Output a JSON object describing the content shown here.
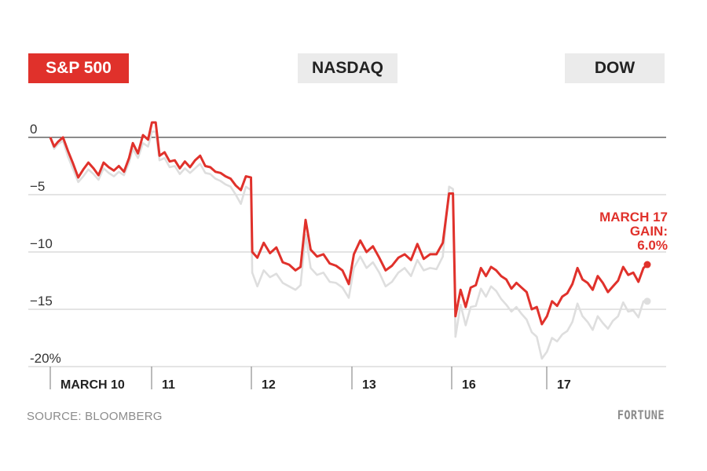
{
  "tabs": [
    {
      "label": "S&P 500",
      "active": true
    },
    {
      "label": "NASDAQ",
      "active": false
    },
    {
      "label": "DOW",
      "active": false
    }
  ],
  "source": "SOURCE: BLOOMBERG",
  "brand": "FORTUNE",
  "colors": {
    "active_series": "#e0312b",
    "inactive_series": "#dedede",
    "active_tab": "#e0312b",
    "inactive_tab": "#ebebeb"
  },
  "chart_data": {
    "type": "line",
    "ylim": [
      -20.5,
      1.5
    ],
    "y_ticks": [
      0,
      -5,
      -10,
      -15,
      -20
    ],
    "y_tick_labels": [
      "0",
      "−5",
      "−10",
      "−15",
      "-20%"
    ],
    "x_day_labels": [
      "MARCH 10",
      "11",
      "12",
      "13",
      "16",
      "17"
    ],
    "annotation": [
      "MARCH 17",
      "GAIN:",
      "6.0%"
    ],
    "grid": true,
    "series": [
      {
        "active": true,
        "points": [
          [
            0,
            0
          ],
          [
            0.3,
            -0.8
          ],
          [
            0.6,
            -0.4
          ],
          [
            1,
            0
          ],
          [
            1.4,
            -1.2
          ],
          [
            1.8,
            -2.3
          ],
          [
            2.2,
            -3.5
          ],
          [
            2.6,
            -2.8
          ],
          [
            3,
            -2.2
          ],
          [
            3.4,
            -2.7
          ],
          [
            3.8,
            -3.3
          ],
          [
            4.2,
            -2.2
          ],
          [
            4.6,
            -2.6
          ],
          [
            5,
            -2.9
          ],
          [
            5.4,
            -2.5
          ],
          [
            5.8,
            -3.0
          ],
          [
            6.2,
            -1.8
          ],
          [
            6.5,
            -0.5
          ],
          [
            6.9,
            -1.4
          ],
          [
            7.3,
            0.2
          ],
          [
            7.7,
            -0.2
          ],
          [
            8,
            1.3
          ],
          [
            8.3,
            1.3
          ],
          [
            8.6,
            -1.6
          ],
          [
            9,
            -1.3
          ],
          [
            9.4,
            -2.1
          ],
          [
            9.8,
            -2.0
          ],
          [
            10.2,
            -2.7
          ],
          [
            10.6,
            -2.1
          ],
          [
            11,
            -2.6
          ],
          [
            11.4,
            -2.0
          ],
          [
            11.8,
            -1.6
          ],
          [
            12.2,
            -2.5
          ],
          [
            12.6,
            -2.6
          ],
          [
            13,
            -3.0
          ],
          [
            13.4,
            -3.1
          ],
          [
            13.8,
            -3.4
          ],
          [
            14.2,
            -3.6
          ],
          [
            14.6,
            -4.2
          ],
          [
            15,
            -4.6
          ],
          [
            15.4,
            -3.4
          ],
          [
            15.8,
            -3.5
          ],
          [
            15.9,
            -10.0
          ],
          [
            16.3,
            -10.5
          ],
          [
            16.8,
            -9.2
          ],
          [
            17.3,
            -10.1
          ],
          [
            17.8,
            -9.6
          ],
          [
            18.3,
            -10.9
          ],
          [
            18.8,
            -11.1
          ],
          [
            19.3,
            -11.6
          ],
          [
            19.7,
            -11.3
          ],
          [
            20.1,
            -7.2
          ],
          [
            20.5,
            -9.8
          ],
          [
            21,
            -10.4
          ],
          [
            21.5,
            -10.2
          ],
          [
            22,
            -11.0
          ],
          [
            22.5,
            -11.2
          ],
          [
            23,
            -11.6
          ],
          [
            23.5,
            -12.8
          ],
          [
            23.9,
            -10.2
          ],
          [
            24.4,
            -9.0
          ],
          [
            24.9,
            -10.0
          ],
          [
            25.4,
            -9.5
          ],
          [
            25.9,
            -10.5
          ],
          [
            26.4,
            -11.6
          ],
          [
            26.9,
            -11.2
          ],
          [
            27.4,
            -10.5
          ],
          [
            27.9,
            -10.2
          ],
          [
            28.4,
            -10.7
          ],
          [
            28.9,
            -9.3
          ],
          [
            29.4,
            -10.6
          ],
          [
            29.9,
            -10.2
          ],
          [
            30.4,
            -10.2
          ],
          [
            30.9,
            -9.2
          ],
          [
            31.4,
            -4.9
          ],
          [
            31.7,
            -4.9
          ],
          [
            31.9,
            -15.6
          ],
          [
            32.3,
            -13.3
          ],
          [
            32.7,
            -14.8
          ],
          [
            33.1,
            -13.1
          ],
          [
            33.5,
            -12.9
          ],
          [
            33.9,
            -11.4
          ],
          [
            34.3,
            -12.1
          ],
          [
            34.7,
            -11.3
          ],
          [
            35.1,
            -11.6
          ],
          [
            35.5,
            -12.1
          ],
          [
            35.9,
            -12.4
          ],
          [
            36.3,
            -13.2
          ],
          [
            36.7,
            -12.7
          ],
          [
            37.1,
            -13.1
          ],
          [
            37.5,
            -13.5
          ],
          [
            37.9,
            -15.0
          ],
          [
            38.3,
            -14.8
          ],
          [
            38.7,
            -16.3
          ],
          [
            39.1,
            -15.6
          ],
          [
            39.5,
            -14.3
          ],
          [
            39.9,
            -14.7
          ],
          [
            40.3,
            -13.9
          ],
          [
            40.7,
            -13.6
          ],
          [
            41.1,
            -12.8
          ],
          [
            41.5,
            -11.4
          ],
          [
            41.9,
            -12.4
          ],
          [
            42.3,
            -12.7
          ],
          [
            42.7,
            -13.3
          ],
          [
            43.1,
            -12.1
          ],
          [
            43.5,
            -12.7
          ],
          [
            43.9,
            -13.5
          ],
          [
            44.3,
            -13.0
          ],
          [
            44.7,
            -12.5
          ],
          [
            45.1,
            -11.3
          ],
          [
            45.5,
            -12.0
          ],
          [
            45.9,
            -11.8
          ],
          [
            46.3,
            -12.6
          ],
          [
            46.7,
            -11.4
          ],
          [
            47,
            -11.1
          ]
        ]
      },
      {
        "active": false,
        "points": [
          [
            0,
            0
          ],
          [
            0.3,
            -1.0
          ],
          [
            0.6,
            -0.6
          ],
          [
            1,
            -0.3
          ],
          [
            1.4,
            -1.7
          ],
          [
            1.8,
            -2.8
          ],
          [
            2.2,
            -3.9
          ],
          [
            2.6,
            -3.4
          ],
          [
            3,
            -2.8
          ],
          [
            3.4,
            -3.2
          ],
          [
            3.8,
            -3.7
          ],
          [
            4.2,
            -2.7
          ],
          [
            4.6,
            -3.1
          ],
          [
            5,
            -3.4
          ],
          [
            5.4,
            -3.0
          ],
          [
            5.8,
            -3.3
          ],
          [
            6.2,
            -2.2
          ],
          [
            6.5,
            -1.0
          ],
          [
            6.9,
            -1.8
          ],
          [
            7.3,
            -0.5
          ],
          [
            7.7,
            -0.8
          ],
          [
            8,
            0.5
          ],
          [
            8.3,
            0.5
          ],
          [
            8.6,
            -2.0
          ],
          [
            9,
            -1.8
          ],
          [
            9.4,
            -2.6
          ],
          [
            9.8,
            -2.5
          ],
          [
            10.2,
            -3.2
          ],
          [
            10.6,
            -2.7
          ],
          [
            11,
            -3.1
          ],
          [
            11.4,
            -2.7
          ],
          [
            11.8,
            -2.3
          ],
          [
            12.2,
            -3.1
          ],
          [
            12.6,
            -3.2
          ],
          [
            13,
            -3.6
          ],
          [
            13.4,
            -3.8
          ],
          [
            13.8,
            -4.1
          ],
          [
            14.2,
            -4.3
          ],
          [
            14.6,
            -5.0
          ],
          [
            15,
            -5.8
          ],
          [
            15.4,
            -4.3
          ],
          [
            15.8,
            -4.6
          ],
          [
            15.9,
            -11.8
          ],
          [
            16.3,
            -13.0
          ],
          [
            16.8,
            -11.6
          ],
          [
            17.3,
            -12.2
          ],
          [
            17.8,
            -11.9
          ],
          [
            18.3,
            -12.7
          ],
          [
            18.8,
            -13.0
          ],
          [
            19.3,
            -13.3
          ],
          [
            19.7,
            -12.9
          ],
          [
            20.1,
            -8.5
          ],
          [
            20.5,
            -11.4
          ],
          [
            21,
            -12.0
          ],
          [
            21.5,
            -11.8
          ],
          [
            22,
            -12.6
          ],
          [
            22.5,
            -12.7
          ],
          [
            23,
            -13.1
          ],
          [
            23.5,
            -14.0
          ],
          [
            23.9,
            -11.4
          ],
          [
            24.4,
            -10.4
          ],
          [
            24.9,
            -11.4
          ],
          [
            25.4,
            -10.9
          ],
          [
            25.9,
            -11.8
          ],
          [
            26.4,
            -13.0
          ],
          [
            26.9,
            -12.6
          ],
          [
            27.4,
            -11.8
          ],
          [
            27.9,
            -11.4
          ],
          [
            28.4,
            -12.1
          ],
          [
            28.9,
            -10.7
          ],
          [
            29.4,
            -11.6
          ],
          [
            29.9,
            -11.4
          ],
          [
            30.4,
            -11.5
          ],
          [
            30.9,
            -10.4
          ],
          [
            31.4,
            -4.3
          ],
          [
            31.7,
            -4.5
          ],
          [
            31.9,
            -17.4
          ],
          [
            32.3,
            -14.6
          ],
          [
            32.7,
            -16.4
          ],
          [
            33.1,
            -14.8
          ],
          [
            33.5,
            -14.7
          ],
          [
            33.9,
            -13.2
          ],
          [
            34.3,
            -13.9
          ],
          [
            34.7,
            -13.0
          ],
          [
            35.1,
            -13.4
          ],
          [
            35.5,
            -14.1
          ],
          [
            35.9,
            -14.6
          ],
          [
            36.3,
            -15.2
          ],
          [
            36.7,
            -14.8
          ],
          [
            37.1,
            -15.4
          ],
          [
            37.5,
            -15.9
          ],
          [
            37.9,
            -17.0
          ],
          [
            38.3,
            -17.4
          ],
          [
            38.7,
            -19.3
          ],
          [
            39.1,
            -18.7
          ],
          [
            39.5,
            -17.5
          ],
          [
            39.9,
            -17.8
          ],
          [
            40.3,
            -17.2
          ],
          [
            40.7,
            -16.9
          ],
          [
            41.1,
            -16.1
          ],
          [
            41.5,
            -14.5
          ],
          [
            41.9,
            -15.6
          ],
          [
            42.3,
            -16.1
          ],
          [
            42.7,
            -16.8
          ],
          [
            43.1,
            -15.6
          ],
          [
            43.5,
            -16.2
          ],
          [
            43.9,
            -16.7
          ],
          [
            44.3,
            -16.0
          ],
          [
            44.7,
            -15.6
          ],
          [
            45.1,
            -14.4
          ],
          [
            45.5,
            -15.2
          ],
          [
            45.9,
            -15.1
          ],
          [
            46.3,
            -15.7
          ],
          [
            46.7,
            -14.3
          ],
          [
            47,
            -14.3
          ]
        ]
      }
    ]
  }
}
